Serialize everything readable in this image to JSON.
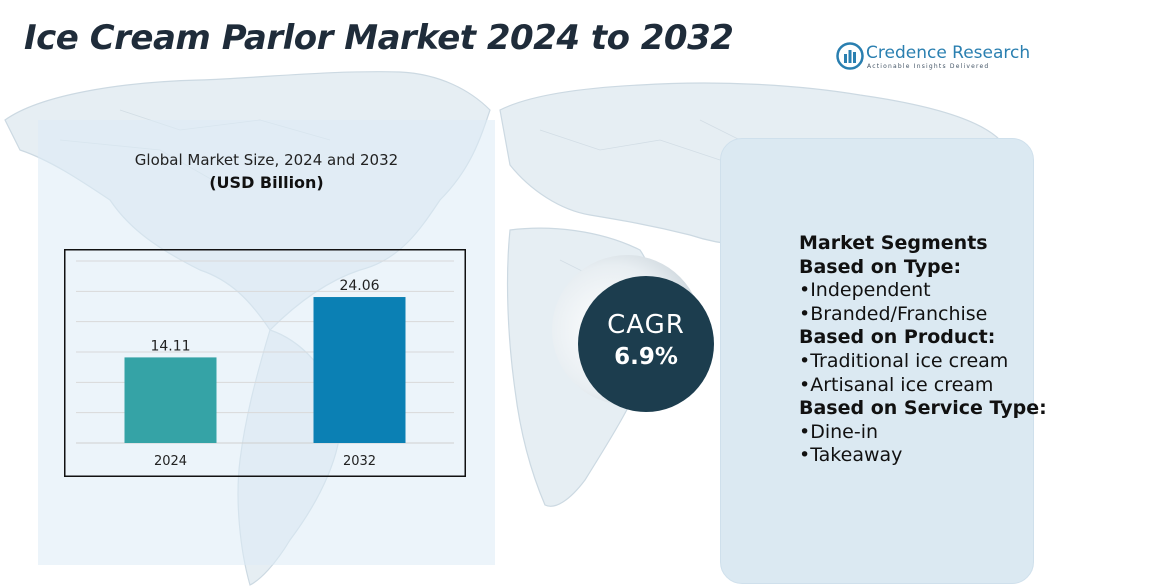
{
  "title": "Ice Cream Parlor Market 2024 to 2032",
  "logo": {
    "name": "Credence Research",
    "tagline": "Actionable Insights Delivered"
  },
  "chart_data": {
    "type": "bar",
    "subtitle": "Global Market Size, 2024 and 2032",
    "unit": "(USD Billion)",
    "categories": [
      "2024",
      "2032"
    ],
    "values": [
      14.11,
      24.06
    ],
    "value_labels": [
      "14.11",
      "24.06"
    ],
    "colors": [
      "#35a3a6",
      "#0b80b4"
    ],
    "ylim": [
      0,
      30
    ],
    "grid": true,
    "legend": "none"
  },
  "cagr": {
    "label": "CAGR",
    "value": "6.9%"
  },
  "segments": {
    "heading": "Market Segments",
    "groups": [
      {
        "label": "Based on Type:",
        "items": [
          "•Independent",
          "•Branded/Franchise"
        ]
      },
      {
        "label": "Based on Product:",
        "items": [
          "•Traditional ice cream",
          "•Artisanal ice cream"
        ]
      },
      {
        "label": "Based on Service Type:",
        "items": [
          "•Dine-in",
          "•Takeaway"
        ]
      }
    ]
  },
  "colors": {
    "title": "#1f2c3a",
    "accent_dark": "#1c3d4e",
    "panel": "#dbe9f2",
    "brand": "#2a7fb0"
  },
  "icons": [
    "world-map-icon",
    "credence-logo-icon"
  ]
}
